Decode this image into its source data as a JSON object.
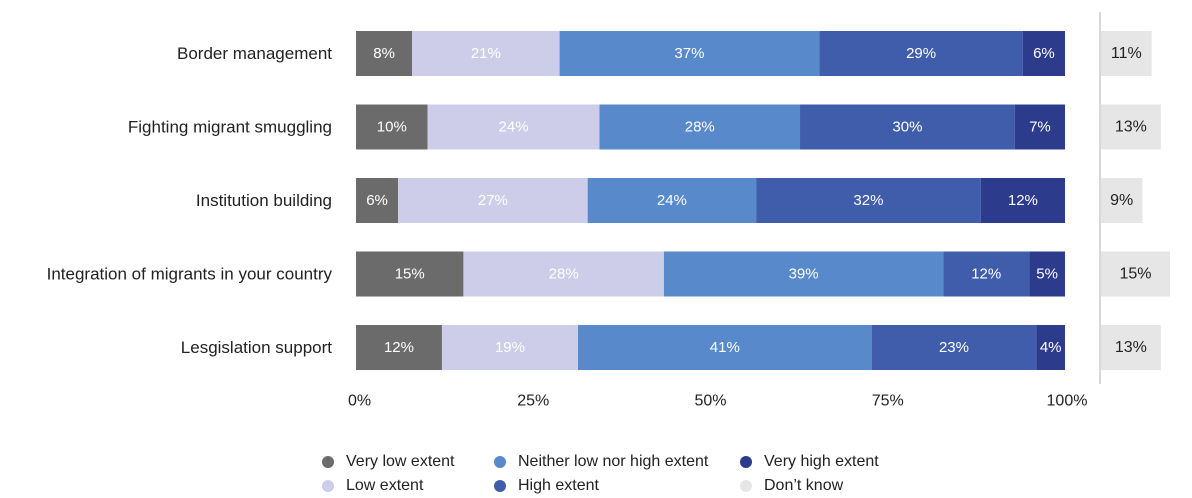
{
  "chart_data": {
    "type": "bar",
    "orientation": "horizontal",
    "stacked": true,
    "categories": [
      "Border management",
      "Fighting migrant smuggling",
      "Institution building",
      "Integration of migrants in your country",
      "Lesgislation support"
    ],
    "series": [
      {
        "name": "Very low extent",
        "color": "#6b6b6b",
        "label_color": "#ffffff",
        "values": [
          8,
          10,
          6,
          15,
          12
        ]
      },
      {
        "name": "Low extent",
        "color": "#cdcde9",
        "label_color": "#ffffff",
        "values": [
          21,
          24,
          27,
          28,
          19
        ]
      },
      {
        "name": "Neither low nor high extent",
        "color": "#5889cb",
        "label_color": "#ffffff",
        "values": [
          37,
          28,
          24,
          39,
          41
        ]
      },
      {
        "name": "High extent",
        "color": "#3f5dab",
        "label_color": "#ffffff",
        "values": [
          29,
          30,
          32,
          12,
          23
        ]
      },
      {
        "name": "Very high extent",
        "color": "#2d3b8d",
        "label_color": "#ffffff",
        "values": [
          6,
          7,
          12,
          5,
          4
        ]
      }
    ],
    "dont_know": {
      "name": "Don’t know",
      "color": "#e6e6e6",
      "values": [
        11,
        13,
        9,
        15,
        13
      ]
    },
    "x_ticks": [
      "0%",
      "25%",
      "50%",
      "75%",
      "100%"
    ],
    "xlim": [
      0,
      100
    ],
    "grid": false,
    "legend_position": "bottom"
  }
}
